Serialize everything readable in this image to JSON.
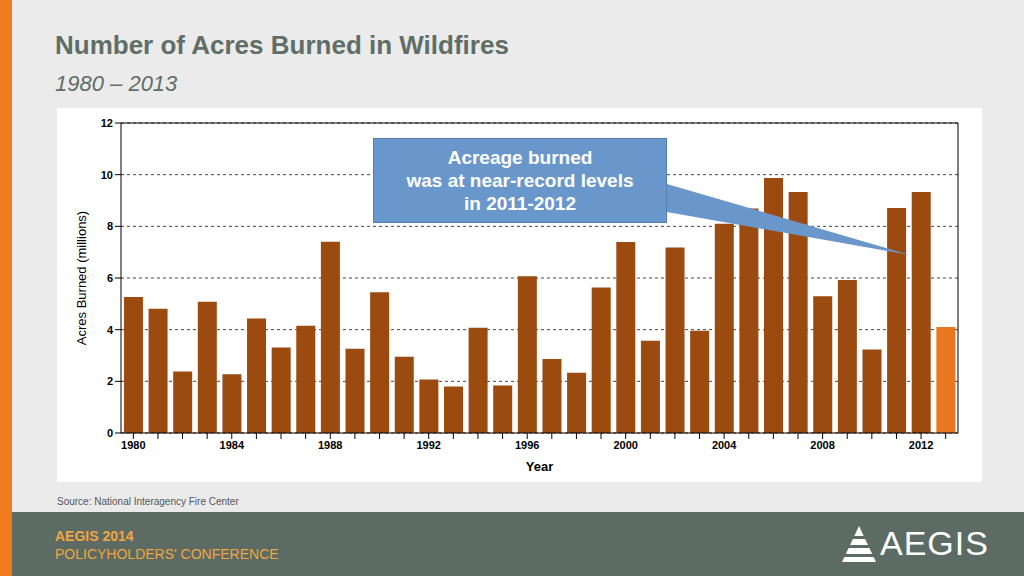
{
  "chart_data": {
    "type": "bar",
    "title": "Number of Acres Burned in Wildfires",
    "subtitle": "1980 – 2013",
    "x_label": "Year",
    "y_label": "Acres Burned (millions)",
    "categories": [
      "1980",
      null,
      null,
      null,
      "1984",
      null,
      null,
      null,
      "1988",
      null,
      null,
      null,
      "1992",
      null,
      null,
      null,
      "1996",
      null,
      null,
      null,
      "2000",
      null,
      null,
      null,
      "2004",
      null,
      null,
      null,
      "2008",
      null,
      null,
      null,
      "2012",
      null
    ],
    "values": [
      5.26,
      4.81,
      2.38,
      5.08,
      2.27,
      4.43,
      3.31,
      4.15,
      7.4,
      3.26,
      5.45,
      2.95,
      2.07,
      1.8,
      4.07,
      1.84,
      6.07,
      2.86,
      2.33,
      5.63,
      7.39,
      3.57,
      7.18,
      3.96,
      8.1,
      8.69,
      9.87,
      9.33,
      5.29,
      5.92,
      3.23,
      8.71,
      9.33,
      4.1
    ],
    "colors": [
      "#9b4a10",
      "#9b4a10",
      "#9b4a10",
      "#9b4a10",
      "#9b4a10",
      "#9b4a10",
      "#9b4a10",
      "#9b4a10",
      "#9b4a10",
      "#9b4a10",
      "#9b4a10",
      "#9b4a10",
      "#9b4a10",
      "#9b4a10",
      "#9b4a10",
      "#9b4a10",
      "#9b4a10",
      "#9b4a10",
      "#9b4a10",
      "#9b4a10",
      "#9b4a10",
      "#9b4a10",
      "#9b4a10",
      "#9b4a10",
      "#9b4a10",
      "#9b4a10",
      "#9b4a10",
      "#9b4a10",
      "#9b4a10",
      "#9b4a10",
      "#9b4a10",
      "#9b4a10",
      "#9b4a10",
      "#e8771f"
    ],
    "ylim": [
      0,
      12
    ],
    "yticks": [
      0,
      2,
      4,
      6,
      8,
      10,
      12
    ],
    "grid": true,
    "annotations": [
      "Acreage burned",
      "was at near-record levels",
      "in 2011-2012"
    ]
  },
  "source": "Source: National Interagency Fire Center",
  "footer": {
    "event": "AEGIS 2014",
    "conference": "POLICYHOLDERS' CONFERENCE",
    "logo": "AEGIS"
  }
}
